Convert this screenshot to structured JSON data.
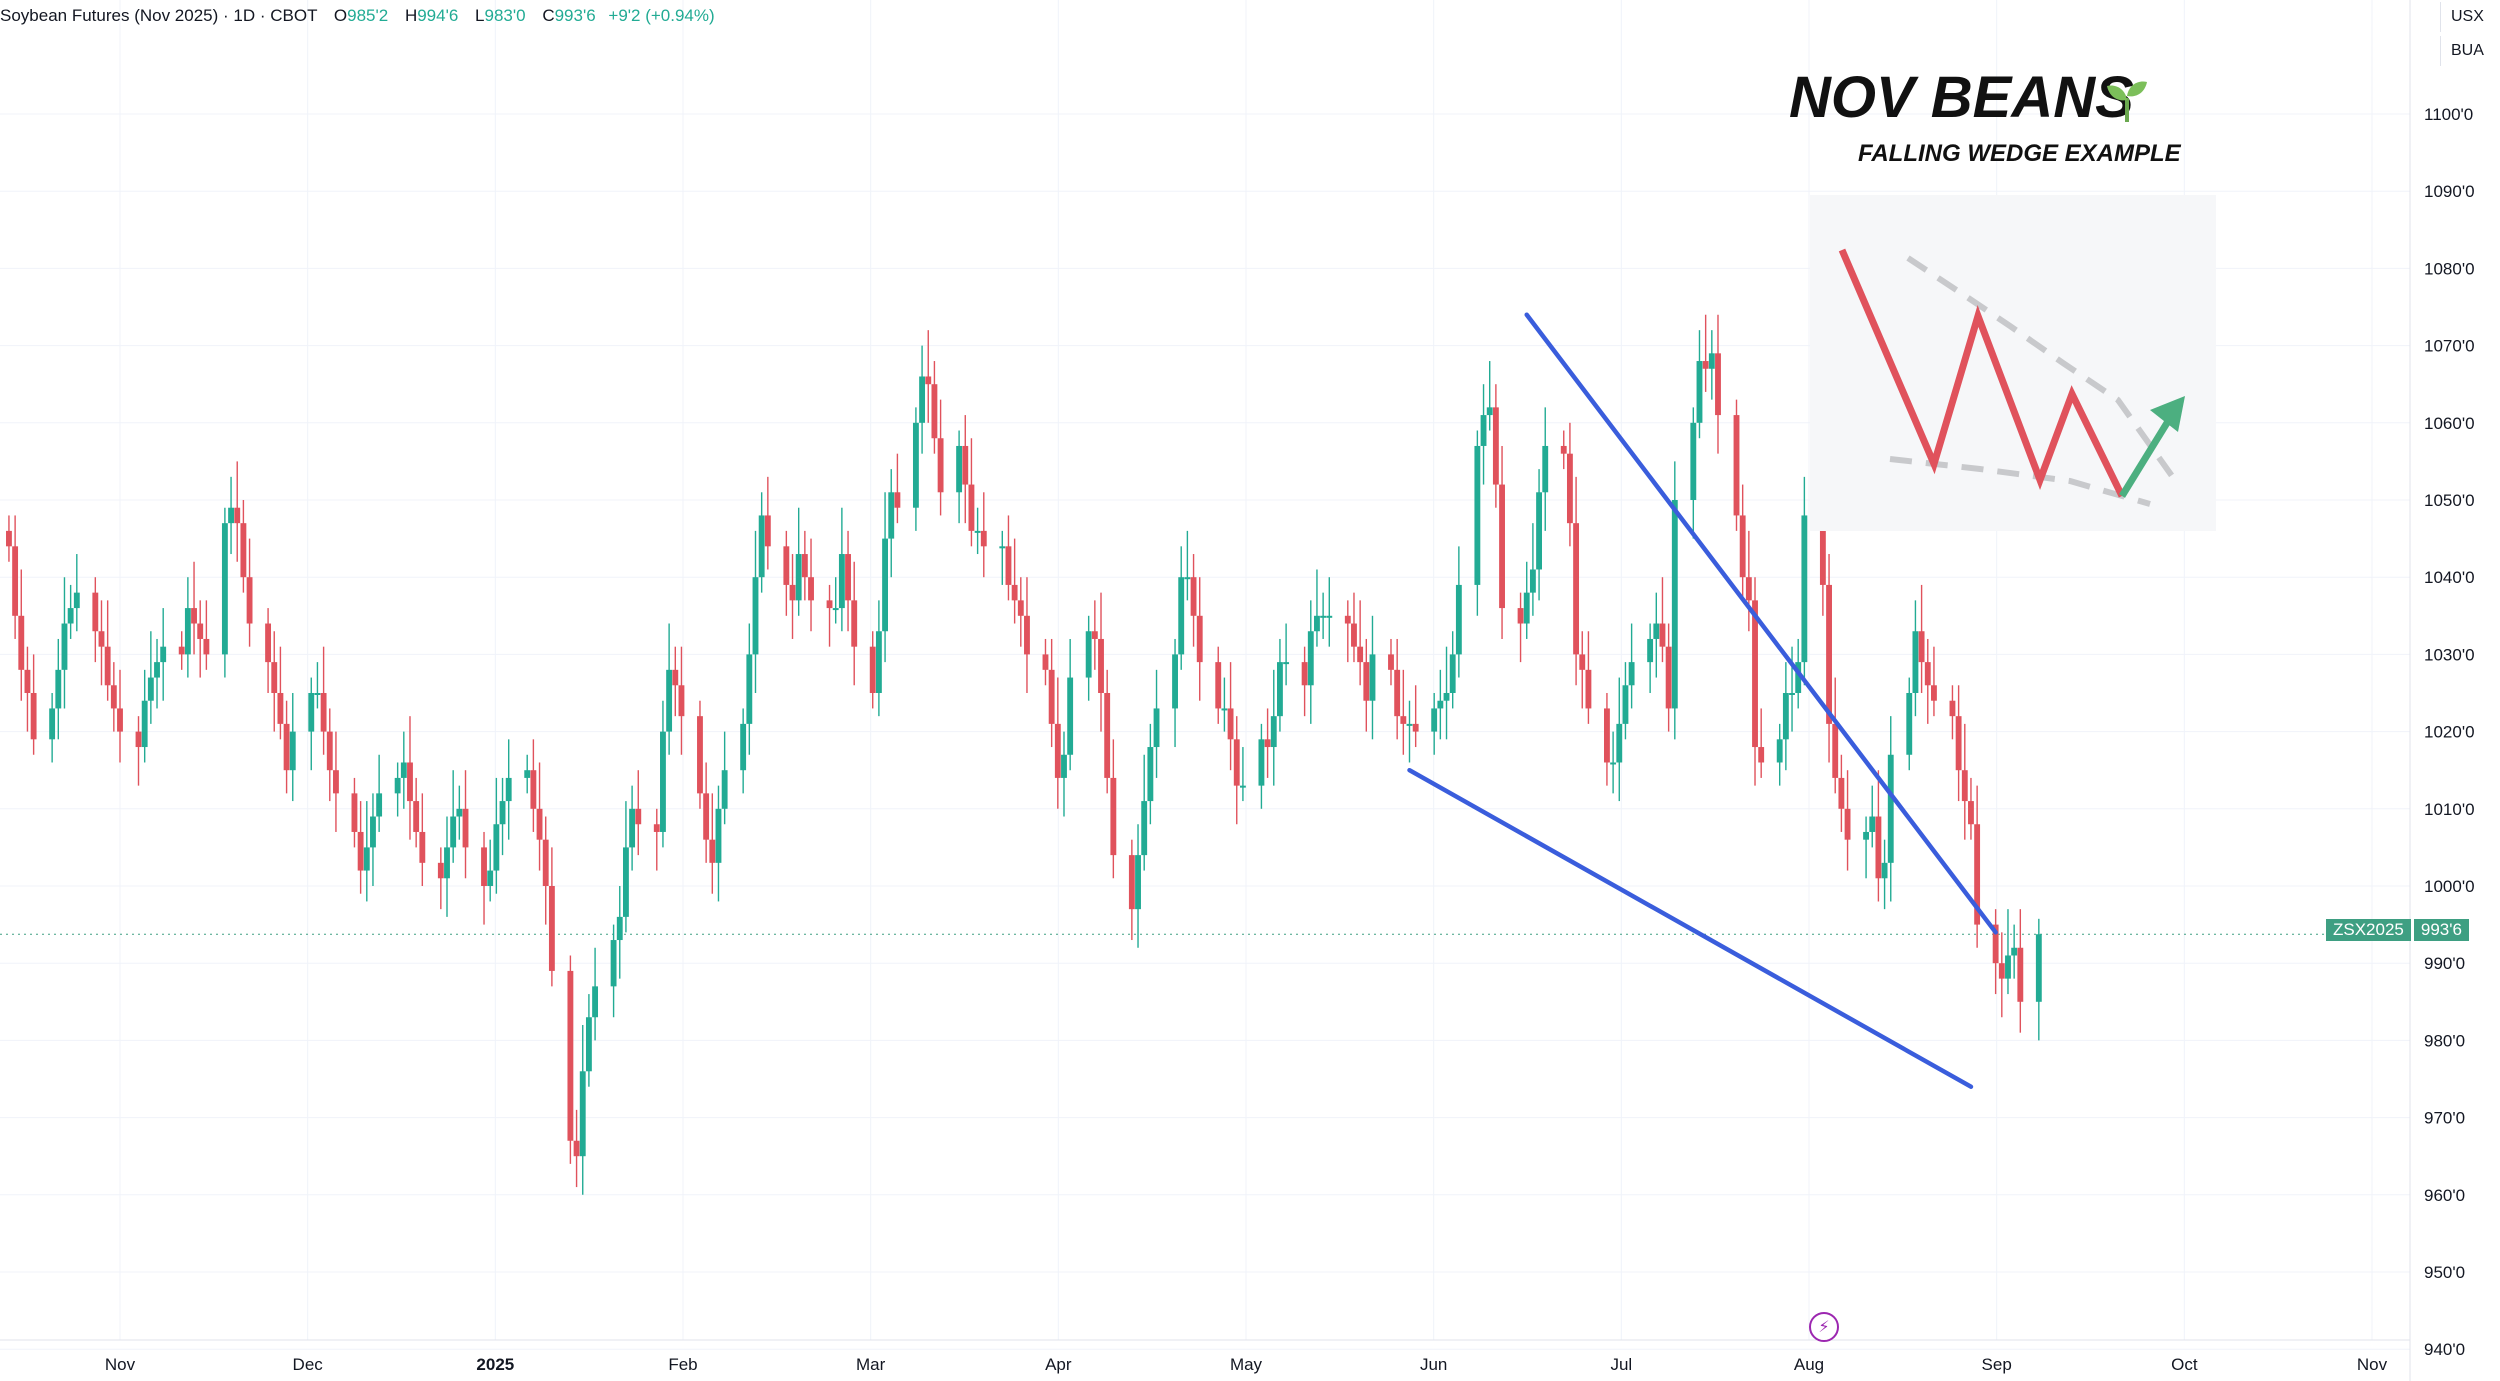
{
  "header": {
    "symbol_title": "Soybean Futures (Nov 2025) · 1D · CBOT",
    "open_label": "O",
    "open_value": "985'2",
    "high_label": "H",
    "high_value": "994'6",
    "low_label": "L",
    "low_value": "983'0",
    "close_label": "C",
    "close_value": "993'6",
    "change": "+9'2 (+0.94%)"
  },
  "axis_units": {
    "currency": "USX",
    "unit": "BUA"
  },
  "annotation": {
    "title": "NOV BEANS",
    "subtitle": "FALLING WEDGE EXAMPLE",
    "sprout_icon": "seedling-icon"
  },
  "price_tag": {
    "symbol": "ZSX2025",
    "value": "993'6"
  },
  "colors": {
    "up": "#22ab94",
    "down": "#e0525c",
    "wedge": "#3a5ddc",
    "inset_red": "#e0525c",
    "inset_green": "#4caf80",
    "grid": "#f0f3fa"
  },
  "chart_data": {
    "type": "candlestick",
    "title": "Soybean Futures (Nov 2025)",
    "x_ticks": [
      "Nov",
      "Dec",
      "2025",
      "Feb",
      "Mar",
      "Apr",
      "May",
      "Jun",
      "Jul",
      "Aug",
      "Sep",
      "Oct",
      "Nov"
    ],
    "y_ticks": [
      "1100'0",
      "1090'0",
      "1080'0",
      "1070'0",
      "1060'0",
      "1050'0",
      "1040'0",
      "1030'0",
      "1020'0",
      "1010'0",
      "1000'0",
      "990'0",
      "980'0",
      "970'0",
      "960'0",
      "950'0",
      "940'0"
    ],
    "ylim": [
      940,
      1110
    ],
    "x_range": [
      "2024-10-14",
      "2025-11-14"
    ],
    "last_price": 993.75,
    "closes": [
      1044,
      1035,
      1028,
      1025,
      1019,
      1023,
      1028,
      1034,
      1036,
      1038,
      1033,
      1031,
      1026,
      1023,
      1020,
      1018,
      1024,
      1027,
      1029,
      1031,
      1030,
      1036,
      1034,
      1032,
      1030,
      1047,
      1049,
      1047,
      1040,
      1034,
      1029,
      1025,
      1021,
      1015,
      1020,
      1025,
      1025,
      1020,
      1015,
      1012,
      1007,
      1002,
      1005,
      1009,
      1012,
      1014,
      1016,
      1011,
      1007,
      1003,
      1001,
      1005,
      1009,
      1010,
      1005,
      1000,
      1002,
      1008,
      1011,
      1014,
      1015,
      1010,
      1006,
      1000,
      989,
      967,
      965,
      976,
      983,
      987,
      993,
      996,
      1005,
      1010,
      1008,
      1007,
      1020,
      1028,
      1026,
      1022,
      1012,
      1006,
      1003,
      1010,
      1015,
      1021,
      1030,
      1040,
      1048,
      1044,
      1039,
      1037,
      1043,
      1040,
      1037,
      1036,
      1036,
      1043,
      1037,
      1031,
      1025,
      1033,
      1045,
      1051,
      1049,
      1060,
      1066,
      1065,
      1058,
      1051,
      1057,
      1052,
      1046,
      1046,
      1044,
      1044,
      1039,
      1037,
      1035,
      1030,
      1028,
      1021,
      1014,
      1017,
      1027,
      1033,
      1032,
      1025,
      1014,
      1004,
      997,
      1004,
      1011,
      1018,
      1023,
      1030,
      1040,
      1040,
      1035,
      1029,
      1023,
      1023,
      1019,
      1013,
      1013,
      1019,
      1018,
      1022,
      1029,
      1029,
      1026,
      1033,
      1035,
      1035,
      1035,
      1034,
      1031,
      1029,
      1024,
      1030,
      1028,
      1022,
      1021,
      1021,
      1020,
      1023,
      1024,
      1025,
      1030,
      1039,
      1057,
      1061,
      1062,
      1052,
      1036,
      1034,
      1038,
      1041,
      1051,
      1057,
      1056,
      1047,
      1030,
      1028,
      1023,
      1016,
      1016,
      1021,
      1026,
      1029,
      1032,
      1034,
      1031,
      1023,
      1050,
      1060,
      1068,
      1067,
      1069,
      1061,
      1048,
      1040,
      1037,
      1018,
      1016,
      1019,
      1025,
      1025,
      1029,
      1048,
      1039,
      1021,
      1014,
      1010,
      1006,
      1007,
      1009,
      1001,
      1003,
      1017,
      1025,
      1033,
      1029,
      1026,
      1024,
      1022,
      1015,
      1011,
      1008,
      995,
      990,
      988,
      991,
      992,
      985,
      993.75
    ],
    "wedge_lines": [
      {
        "from": [
          "2025-06-17",
          1074
        ],
        "to": [
          "2025-09-01",
          994
        ]
      },
      {
        "from": [
          "2025-05-29",
          1015
        ],
        "to": [
          "2025-08-28",
          974
        ]
      }
    ]
  }
}
